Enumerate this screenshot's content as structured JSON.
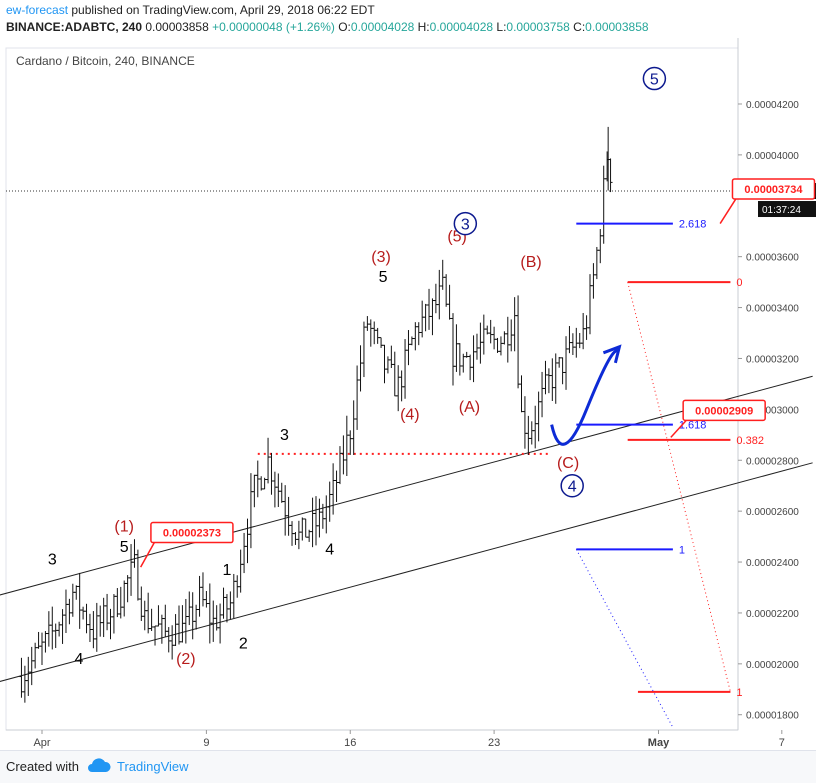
{
  "header": {
    "author": "ew-forecast",
    "published": "published on TradingView.com, April 29, 2018 06:22 EDT",
    "symbol": "BINANCE:ADABTC, 240",
    "last": "0.00003858",
    "change": "+0.00000048 (+1.26%)",
    "o_label": "O:",
    "o": "0.00004028",
    "h_label": "H:",
    "h": "0.00004028",
    "l_label": "L:",
    "l": "0.00003758",
    "c_label": "C:",
    "c": "0.00003858"
  },
  "footer": {
    "created": "Created with",
    "brand": "TradingView",
    "brand_icon": "tradingview-cloud-icon"
  },
  "colors": {
    "accent": "#2196f3",
    "wave_red": "#b71c1c",
    "wave_blue": "#0d1a8f",
    "fib_red": "#ff1f1f",
    "fib_blue": "#1a1aff"
  },
  "chart_data": {
    "type": "candlestick",
    "title": "Cardano / Bitcoin, 240, BINANCE",
    "x_ticks": [
      "Apr",
      "9",
      "16",
      "23",
      "May",
      "7"
    ],
    "x_tick_days": [
      1,
      9,
      16,
      23,
      31,
      37
    ],
    "y_ticks": [
      "0.00004200",
      "0.00004000",
      "0.00003600",
      "0.00003400",
      "0.00003200",
      "0.00003000",
      "0.00002800",
      "0.00002600",
      "0.00002400",
      "0.00002200",
      "0.00002000",
      "0.00001800"
    ],
    "y_tick_values": [
      4.2e-05,
      4e-05,
      3.6e-05,
      3.4e-05,
      3.2e-05,
      3e-05,
      2.8e-05,
      2.6e-05,
      2.4e-05,
      2.2e-05,
      2e-05,
      1.8e-05
    ],
    "ylim": [
      1.74e-05,
      4.42e-05
    ],
    "current_price": "0.00003858",
    "countdown": "01:37:24",
    "path_points": [
      [
        0.0,
        1.95e-05
      ],
      [
        1.5,
        2.12e-05
      ],
      [
        2.5,
        2.28e-05
      ],
      [
        3.5,
        2.13e-05
      ],
      [
        4.5,
        2.22e-05
      ],
      [
        5.5,
        2.38e-05
      ],
      [
        6.0,
        2.18e-05
      ],
      [
        7.0,
        2.12e-05
      ],
      [
        8.0,
        2.14e-05
      ],
      [
        8.7,
        2.26e-05
      ],
      [
        9.3,
        2.16e-05
      ],
      [
        10.2,
        2.24e-05
      ],
      [
        11.3,
        2.68e-05
      ],
      [
        12.0,
        2.8e-05
      ],
      [
        12.8,
        2.62e-05
      ],
      [
        13.5,
        2.5e-05
      ],
      [
        14.5,
        2.56e-05
      ],
      [
        15.2,
        2.68e-05
      ],
      [
        16.0,
        2.92e-05
      ],
      [
        16.8,
        3.35e-05
      ],
      [
        17.6,
        3.18e-05
      ],
      [
        18.3,
        3.08e-05
      ],
      [
        19.2,
        3.32e-05
      ],
      [
        20.1,
        3.4e-05
      ],
      [
        20.5,
        3.47e-05
      ],
      [
        21.0,
        3.22e-05
      ],
      [
        21.5,
        3.2e-05
      ],
      [
        22.5,
        3.26e-05
      ],
      [
        23.5,
        3.28e-05
      ],
      [
        24.0,
        3.38e-05
      ],
      [
        24.3,
        2.98e-05
      ],
      [
        24.7,
        2.91e-05
      ],
      [
        25.6,
        3.1e-05
      ],
      [
        26.5,
        3.2e-05
      ],
      [
        27.4,
        3.3e-05
      ],
      [
        27.9,
        3.55e-05
      ],
      [
        28.2,
        3.75e-05
      ],
      [
        28.5,
        4e-05
      ],
      [
        28.75,
        3.9e-05
      ]
    ],
    "trend_channel": {
      "upper": [
        {
          "day": -2,
          "price": 2.25e-05
        },
        {
          "day": 38.5,
          "price": 3.13e-05
        }
      ],
      "lower": [
        {
          "day": -2,
          "price": 1.91e-05
        },
        {
          "day": 38.5,
          "price": 2.79e-05
        }
      ]
    },
    "wave_labels": [
      {
        "text": "(1)",
        "day": 5.0,
        "price": 2.52e-05,
        "color": "wave_red"
      },
      {
        "text": "5",
        "day": 5.0,
        "price": 2.44e-05,
        "color": "black"
      },
      {
        "text": "3",
        "day": 1.5,
        "price": 2.39e-05,
        "color": "black"
      },
      {
        "text": "4",
        "day": 2.8,
        "price": 2e-05,
        "color": "black"
      },
      {
        "text": "(2)",
        "day": 8.0,
        "price": 2e-05,
        "color": "wave_red"
      },
      {
        "text": "1",
        "day": 10.0,
        "price": 2.35e-05,
        "color": "black"
      },
      {
        "text": "2",
        "day": 10.8,
        "price": 2.06e-05,
        "color": "black"
      },
      {
        "text": "3",
        "day": 12.8,
        "price": 2.88e-05,
        "color": "black"
      },
      {
        "text": "4",
        "day": 15.0,
        "price": 2.43e-05,
        "color": "black"
      },
      {
        "text": "(3)",
        "day": 17.5,
        "price": 3.58e-05,
        "color": "wave_red"
      },
      {
        "text": "5",
        "day": 17.6,
        "price": 3.5e-05,
        "color": "black"
      },
      {
        "text": "(4)",
        "day": 18.9,
        "price": 2.96e-05,
        "color": "wave_red"
      },
      {
        "text": "(5)",
        "day": 21.2,
        "price": 3.66e-05,
        "color": "wave_red"
      },
      {
        "text": "(A)",
        "day": 21.8,
        "price": 2.99e-05,
        "color": "wave_red"
      },
      {
        "text": "(B)",
        "day": 24.8,
        "price": 3.56e-05,
        "color": "wave_red"
      },
      {
        "text": "(C)",
        "day": 26.6,
        "price": 2.77e-05,
        "color": "wave_red"
      }
    ],
    "circled_labels": [
      {
        "text": "3",
        "day": 21.6,
        "price": 3.73e-05
      },
      {
        "text": "4",
        "day": 26.8,
        "price": 2.7e-05
      },
      {
        "text": "5",
        "day": 30.8,
        "price": 4.3e-05
      }
    ],
    "dotted_level": {
      "price": 2.825e-05,
      "from": 11.5,
      "to": 25.8
    },
    "fib_levels": [
      {
        "label": "2.618",
        "price": 3.73e-05,
        "from": 27.0,
        "to": 31.7,
        "color": "fib_blue"
      },
      {
        "label": "0",
        "price": 3.5e-05,
        "from": 29.5,
        "to": 34.5,
        "color": "fib_red"
      },
      {
        "label": "1.618",
        "price": 2.94e-05,
        "from": 27.0,
        "to": 31.7,
        "color": "fib_blue"
      },
      {
        "label": "0.382",
        "price": 2.88e-05,
        "from": 29.5,
        "to": 34.5,
        "color": "fib_red"
      },
      {
        "label": "1",
        "price": 2.45e-05,
        "from": 27.0,
        "to": 31.7,
        "color": "fib_blue"
      },
      {
        "label": "1",
        "price": 1.89e-05,
        "from": 30.0,
        "to": 34.5,
        "color": "fib_red"
      }
    ],
    "callouts": [
      {
        "text": "0.00002373",
        "day": 5.8,
        "price": 2.38e-05,
        "box_day": 6.3,
        "box_price": 2.52e-05
      },
      {
        "text": "0.00002909",
        "day": 31.6,
        "price": 2.89e-05,
        "box_day": 32.2,
        "box_price": 3e-05
      },
      {
        "text": "0.00003734",
        "day": 34.0,
        "price": 3.73e-05,
        "box_day": 34.6,
        "box_price": 3.87e-05
      }
    ]
  }
}
